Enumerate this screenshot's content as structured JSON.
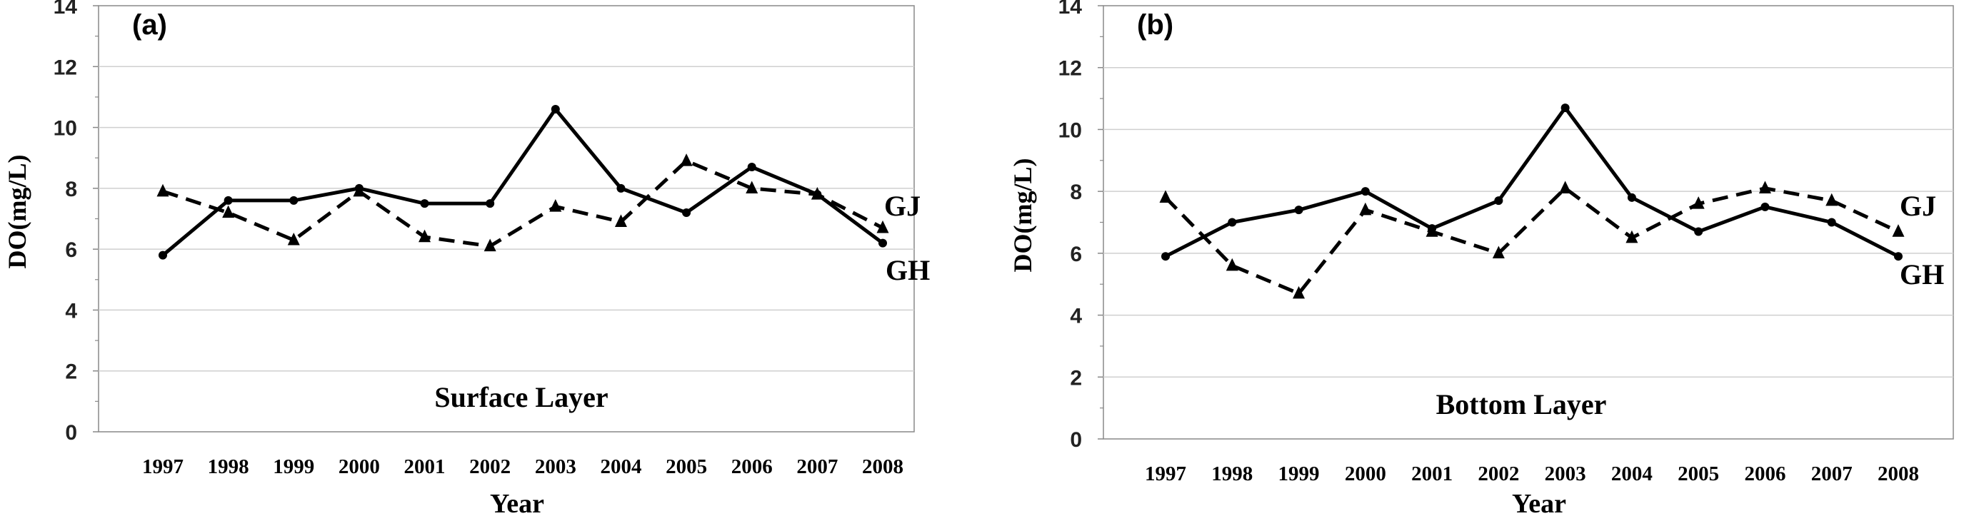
{
  "chart_data": [
    {
      "type": "line",
      "panel_label": "(a)",
      "annotation": "Surface Layer",
      "xlabel": "Year",
      "ylabel": "DO(mg/L)",
      "categories": [
        "1997",
        "1998",
        "1999",
        "2000",
        "2001",
        "2002",
        "2003",
        "2004",
        "2005",
        "2006",
        "2007",
        "2008"
      ],
      "ylim": [
        0,
        14
      ],
      "yticks": [
        "0",
        "2",
        "4",
        "6",
        "8",
        "10",
        "12",
        "14"
      ],
      "grid": true,
      "series": [
        {
          "name": "GH",
          "style": "solid",
          "marker": "circle",
          "values": [
            5.8,
            7.6,
            7.6,
            8.0,
            7.5,
            7.5,
            10.6,
            8.0,
            7.2,
            8.7,
            7.8,
            6.2
          ]
        },
        {
          "name": "GJ",
          "style": "dashed",
          "marker": "triangle",
          "values": [
            7.9,
            7.2,
            6.3,
            7.9,
            6.4,
            6.1,
            7.4,
            6.9,
            8.9,
            8.0,
            7.8,
            6.7
          ]
        }
      ]
    },
    {
      "type": "line",
      "panel_label": "(b)",
      "annotation": "Bottom Layer",
      "xlabel": "Year",
      "ylabel": "DO(mg/L)",
      "categories": [
        "1997",
        "1998",
        "1999",
        "2000",
        "2001",
        "2002",
        "2003",
        "2004",
        "2005",
        "2006",
        "2007",
        "2008"
      ],
      "ylim": [
        0,
        14
      ],
      "yticks": [
        "0",
        "2",
        "4",
        "6",
        "8",
        "10",
        "12",
        "14"
      ],
      "grid": true,
      "series": [
        {
          "name": "GH",
          "style": "solid",
          "marker": "circle",
          "values": [
            5.9,
            7.0,
            7.4,
            8.0,
            6.8,
            7.7,
            10.7,
            7.8,
            6.7,
            7.5,
            7.0,
            5.9
          ]
        },
        {
          "name": "GJ",
          "style": "dashed",
          "marker": "triangle",
          "values": [
            7.8,
            5.6,
            4.7,
            7.4,
            6.7,
            6.0,
            8.1,
            6.5,
            7.6,
            8.1,
            7.7,
            6.7
          ]
        }
      ]
    }
  ]
}
